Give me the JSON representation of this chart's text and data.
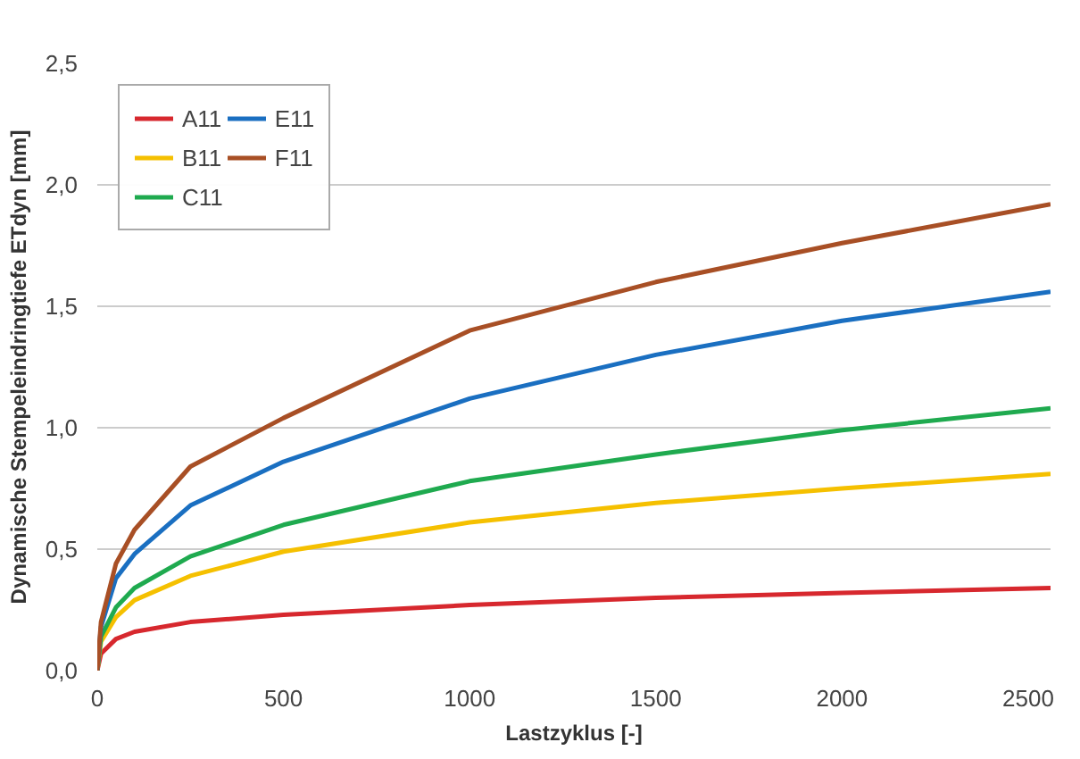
{
  "chart_data": {
    "type": "line",
    "xlabel": "Lastzyklus [-]",
    "ylabel": "Dynamische Stempeleindringtiefe ETdyn [mm]",
    "x": [
      0,
      10,
      50,
      100,
      250,
      500,
      1000,
      1500,
      2000,
      2560
    ],
    "series": [
      {
        "name": "A11",
        "color": "#d7282e",
        "values": [
          0,
          0.07,
          0.13,
          0.16,
          0.2,
          0.23,
          0.27,
          0.3,
          0.32,
          0.34
        ]
      },
      {
        "name": "B11",
        "color": "#f5c000",
        "values": [
          0,
          0.12,
          0.22,
          0.29,
          0.39,
          0.49,
          0.61,
          0.69,
          0.75,
          0.81
        ]
      },
      {
        "name": "C11",
        "color": "#1faa4f",
        "values": [
          0,
          0.14,
          0.26,
          0.34,
          0.47,
          0.6,
          0.78,
          0.89,
          0.99,
          1.08
        ]
      },
      {
        "name": "E11",
        "color": "#1a6fc1",
        "values": [
          0,
          0.18,
          0.38,
          0.48,
          0.68,
          0.86,
          1.12,
          1.3,
          1.44,
          1.56
        ]
      },
      {
        "name": "F11",
        "color": "#a84f25",
        "values": [
          0,
          0.2,
          0.44,
          0.58,
          0.84,
          1.04,
          1.4,
          1.6,
          1.76,
          1.92
        ]
      }
    ],
    "xlim": [
      0,
      2560
    ],
    "ylim": [
      0,
      2.5
    ],
    "xticks": [
      0,
      500,
      1000,
      1500,
      2000,
      2500
    ],
    "yticks": [
      {
        "value": 0,
        "label": "0,0"
      },
      {
        "value": 0.5,
        "label": "0,5"
      },
      {
        "value": 1.0,
        "label": "1,0"
      },
      {
        "value": 1.5,
        "label": "1,5"
      },
      {
        "value": 2.0,
        "label": "2,0"
      },
      {
        "value": 2.5,
        "label": "2,5"
      }
    ],
    "grid": "y",
    "legend": "top left",
    "line_style": "solid",
    "marker": "none"
  }
}
